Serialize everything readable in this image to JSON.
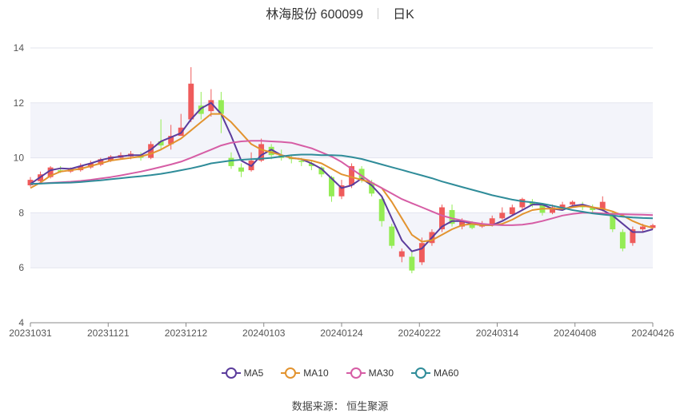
{
  "header": {
    "title": "林海股份 600099",
    "period": "日K"
  },
  "source_label": "数据来源：  恒生聚源",
  "chart_data": {
    "type": "candlestick",
    "title": "林海股份 600099",
    "period": "日K",
    "ylim": [
      4,
      14
    ],
    "y_ticks": [
      4,
      6,
      8,
      10,
      12,
      14
    ],
    "x_ticks": [
      "20231031",
      "20231121",
      "20231212",
      "20240103",
      "20240124",
      "20240222",
      "20240314",
      "20240408",
      "20240426"
    ],
    "grid": "horizontal",
    "legend_position": "bottom-center",
    "up_color": "#ef5b5b",
    "down_color": "#94ec55",
    "series": [
      {
        "name": "MA5",
        "color": "#5b3c9c",
        "values": [
          9.05,
          9.3,
          9.55,
          9.62,
          9.6,
          9.7,
          9.8,
          9.92,
          10.0,
          10.05,
          10.1,
          10.1,
          10.3,
          10.6,
          10.75,
          10.9,
          11.4,
          11.8,
          12.0,
          11.6,
          10.8,
          9.9,
          9.7,
          10.1,
          10.3,
          10.1,
          10.0,
          9.95,
          9.8,
          9.6,
          9.25,
          8.9,
          9.0,
          9.25,
          9.0,
          8.6,
          7.8,
          7.0,
          6.6,
          6.7,
          7.1,
          7.5,
          7.7,
          7.7,
          7.6,
          7.55,
          7.55,
          7.7,
          7.9,
          8.1,
          8.3,
          8.3,
          8.15,
          8.1,
          8.25,
          8.3,
          8.2,
          8.1,
          7.9,
          7.6,
          7.3,
          7.3,
          7.4
        ]
      },
      {
        "name": "MA10",
        "color": "#e2932f",
        "values": [
          8.9,
          9.1,
          9.35,
          9.5,
          9.55,
          9.6,
          9.7,
          9.8,
          9.9,
          9.95,
          10.0,
          10.05,
          10.15,
          10.3,
          10.5,
          10.7,
          11.0,
          11.3,
          11.6,
          11.6,
          11.3,
          10.9,
          10.5,
          10.3,
          10.2,
          10.1,
          10.0,
          9.95,
          9.9,
          9.8,
          9.6,
          9.4,
          9.3,
          9.2,
          9.1,
          8.9,
          8.4,
          7.8,
          7.2,
          6.95,
          7.0,
          7.2,
          7.4,
          7.55,
          7.6,
          7.55,
          7.55,
          7.6,
          7.75,
          7.95,
          8.1,
          8.15,
          8.15,
          8.15,
          8.2,
          8.25,
          8.2,
          8.15,
          8.05,
          7.9,
          7.7,
          7.55,
          7.45
        ]
      },
      {
        "name": "MA30",
        "color": "#d65da5",
        "values": [
          9.05,
          9.07,
          9.09,
          9.11,
          9.13,
          9.16,
          9.2,
          9.25,
          9.3,
          9.36,
          9.43,
          9.5,
          9.58,
          9.67,
          9.76,
          9.86,
          10.0,
          10.15,
          10.3,
          10.45,
          10.55,
          10.6,
          10.62,
          10.62,
          10.6,
          10.58,
          10.55,
          10.45,
          10.35,
          10.2,
          10.05,
          9.85,
          9.6,
          9.35,
          9.1,
          8.9,
          8.7,
          8.5,
          8.35,
          8.2,
          8.05,
          7.9,
          7.8,
          7.72,
          7.65,
          7.6,
          7.57,
          7.55,
          7.55,
          7.57,
          7.62,
          7.7,
          7.8,
          7.9,
          7.96,
          8.0,
          8.0,
          7.98,
          7.96,
          7.95,
          7.94,
          7.93,
          7.92
        ]
      },
      {
        "name": "MA60",
        "color": "#2f8c99",
        "values": [
          9.05,
          9.06,
          9.08,
          9.09,
          9.1,
          9.12,
          9.15,
          9.18,
          9.22,
          9.26,
          9.3,
          9.33,
          9.37,
          9.42,
          9.48,
          9.55,
          9.62,
          9.7,
          9.8,
          9.85,
          9.9,
          9.93,
          9.95,
          9.97,
          10.0,
          10.05,
          10.1,
          10.12,
          10.12,
          10.1,
          10.1,
          10.08,
          10.03,
          9.96,
          9.86,
          9.76,
          9.66,
          9.56,
          9.46,
          9.36,
          9.26,
          9.14,
          9.04,
          8.94,
          8.84,
          8.74,
          8.64,
          8.56,
          8.48,
          8.42,
          8.38,
          8.33,
          8.26,
          8.18,
          8.1,
          8.04,
          7.98,
          7.94,
          7.9,
          7.86,
          7.83,
          7.81,
          7.8
        ]
      }
    ],
    "candles": [
      [
        9.0,
        9.2,
        9.3,
        8.95
      ],
      [
        9.15,
        9.4,
        9.5,
        9.1
      ],
      [
        9.3,
        9.65,
        9.7,
        9.25
      ],
      [
        9.55,
        9.5,
        9.7,
        9.45
      ],
      [
        9.5,
        9.6,
        9.65,
        9.45
      ],
      [
        9.55,
        9.7,
        9.8,
        9.5
      ],
      [
        9.65,
        9.8,
        9.9,
        9.6
      ],
      [
        9.75,
        9.95,
        10.0,
        9.7
      ],
      [
        9.9,
        10.05,
        10.1,
        9.85
      ],
      [
        10.0,
        10.1,
        10.2,
        9.95
      ],
      [
        10.05,
        10.15,
        10.25,
        9.95
      ],
      [
        10.1,
        10.0,
        10.2,
        9.9
      ],
      [
        10.0,
        10.5,
        10.6,
        9.95
      ],
      [
        10.6,
        10.45,
        11.4,
        10.3
      ],
      [
        10.5,
        10.8,
        11.2,
        10.3
      ],
      [
        10.8,
        11.1,
        11.6,
        10.8
      ],
      [
        11.4,
        12.7,
        13.3,
        11.3
      ],
      [
        11.9,
        11.6,
        12.4,
        11.4
      ],
      [
        11.7,
        12.1,
        12.5,
        11.5
      ],
      [
        12.1,
        11.6,
        12.4,
        10.9
      ],
      [
        10.0,
        9.7,
        10.2,
        9.6
      ],
      [
        9.65,
        9.5,
        9.8,
        9.3
      ],
      [
        9.55,
        9.9,
        10.2,
        9.5
      ],
      [
        9.9,
        10.5,
        10.7,
        9.85
      ],
      [
        10.4,
        10.1,
        10.5,
        9.95
      ],
      [
        10.1,
        10.0,
        10.3,
        9.9
      ],
      [
        10.0,
        9.95,
        10.1,
        9.8
      ],
      [
        9.9,
        9.85,
        10.0,
        9.7
      ],
      [
        9.8,
        9.7,
        9.9,
        9.55
      ],
      [
        9.65,
        9.4,
        9.7,
        9.3
      ],
      [
        9.3,
        8.6,
        9.35,
        8.4
      ],
      [
        8.6,
        9.0,
        9.2,
        8.5
      ],
      [
        9.0,
        9.7,
        9.8,
        8.9
      ],
      [
        9.6,
        9.2,
        9.7,
        9.1
      ],
      [
        9.1,
        8.7,
        9.2,
        8.6
      ],
      [
        8.5,
        7.7,
        8.6,
        7.5
      ],
      [
        7.5,
        6.8,
        7.6,
        6.7
      ],
      [
        6.4,
        6.6,
        6.7,
        6.2
      ],
      [
        6.4,
        5.9,
        6.6,
        5.8
      ],
      [
        6.2,
        6.9,
        7.1,
        6.1
      ],
      [
        6.9,
        7.3,
        7.4,
        6.8
      ],
      [
        7.4,
        8.2,
        8.3,
        7.3
      ],
      [
        8.1,
        7.6,
        8.3,
        7.5
      ],
      [
        7.5,
        7.7,
        7.8,
        7.4
      ],
      [
        7.6,
        7.45,
        7.7,
        7.4
      ],
      [
        7.5,
        7.6,
        7.7,
        7.45
      ],
      [
        7.55,
        7.8,
        7.9,
        7.5
      ],
      [
        7.8,
        8.0,
        8.2,
        7.75
      ],
      [
        7.95,
        8.2,
        8.3,
        7.9
      ],
      [
        8.2,
        8.5,
        8.55,
        8.1
      ],
      [
        8.4,
        8.3,
        8.5,
        8.2
      ],
      [
        8.3,
        8.0,
        8.35,
        7.9
      ],
      [
        8.0,
        8.2,
        8.3,
        7.95
      ],
      [
        8.15,
        8.3,
        8.4,
        8.1
      ],
      [
        8.3,
        8.4,
        8.45,
        8.25
      ],
      [
        8.3,
        8.2,
        8.4,
        8.1
      ],
      [
        8.2,
        8.1,
        8.3,
        8.0
      ],
      [
        8.1,
        8.4,
        8.6,
        8.05
      ],
      [
        8.0,
        7.4,
        8.05,
        7.3
      ],
      [
        7.3,
        6.7,
        7.4,
        6.6
      ],
      [
        6.9,
        7.4,
        7.5,
        6.8
      ],
      [
        7.4,
        7.5,
        7.6,
        7.3
      ],
      [
        7.45,
        7.55,
        7.6,
        7.4
      ]
    ]
  },
  "legend": {
    "items": [
      {
        "label": "MA5",
        "color": "#5b3c9c"
      },
      {
        "label": "MA10",
        "color": "#e2932f"
      },
      {
        "label": "MA30",
        "color": "#d65da5"
      },
      {
        "label": "MA60",
        "color": "#2f8c99"
      }
    ]
  }
}
